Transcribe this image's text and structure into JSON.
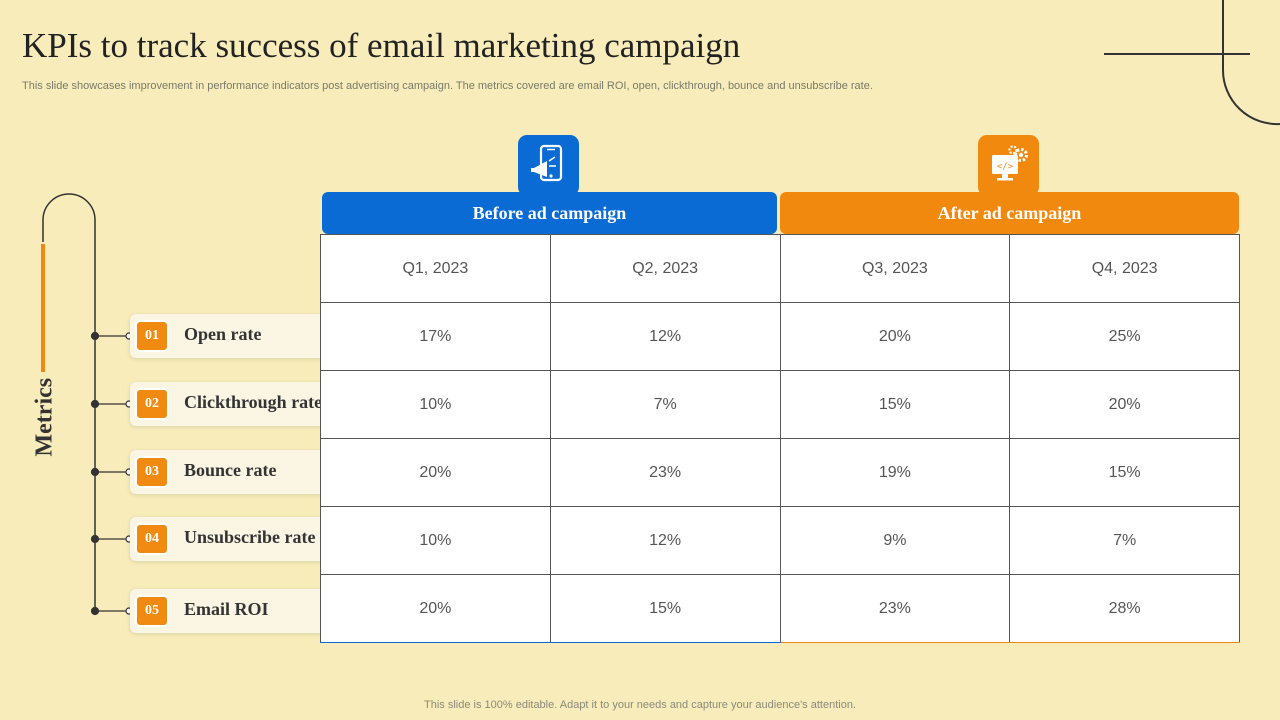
{
  "title": "KPIs to track success of email marketing campaign",
  "subtitle": "This slide showcases improvement in performance indicators post advertising campaign. The metrics covered are email ROI, open, clickthrough, bounce and unsubscribe rate.",
  "side_label": "Metrics",
  "groups": {
    "before": {
      "label": "Before ad campaign",
      "icon": "mobile-megaphone-icon",
      "color": "#0a6bd4"
    },
    "after": {
      "label": "After ad campaign",
      "icon": "monitor-gear-icon",
      "color": "#f2890f"
    }
  },
  "quarters": [
    "Q1, 2023",
    "Q2, 2023",
    "Q3, 2023",
    "Q4, 2023"
  ],
  "metrics": [
    {
      "num": "01",
      "label": "Open rate",
      "values": [
        "17%",
        "12%",
        "20%",
        "25%"
      ]
    },
    {
      "num": "02",
      "label": "Clickthrough rate",
      "values": [
        "10%",
        "7%",
        "15%",
        "20%"
      ]
    },
    {
      "num": "03",
      "label": "Bounce rate",
      "values": [
        "20%",
        "23%",
        "19%",
        "15%"
      ]
    },
    {
      "num": "04",
      "label": "Unsubscribe rate",
      "values": [
        "10%",
        "12%",
        "9%",
        "7%"
      ]
    },
    {
      "num": "05",
      "label": "Email ROI",
      "values": [
        "20%",
        "15%",
        "23%",
        "28%"
      ]
    }
  ],
  "footer": "This slide is 100% editable. Adapt it to your needs and capture your audience's attention."
}
